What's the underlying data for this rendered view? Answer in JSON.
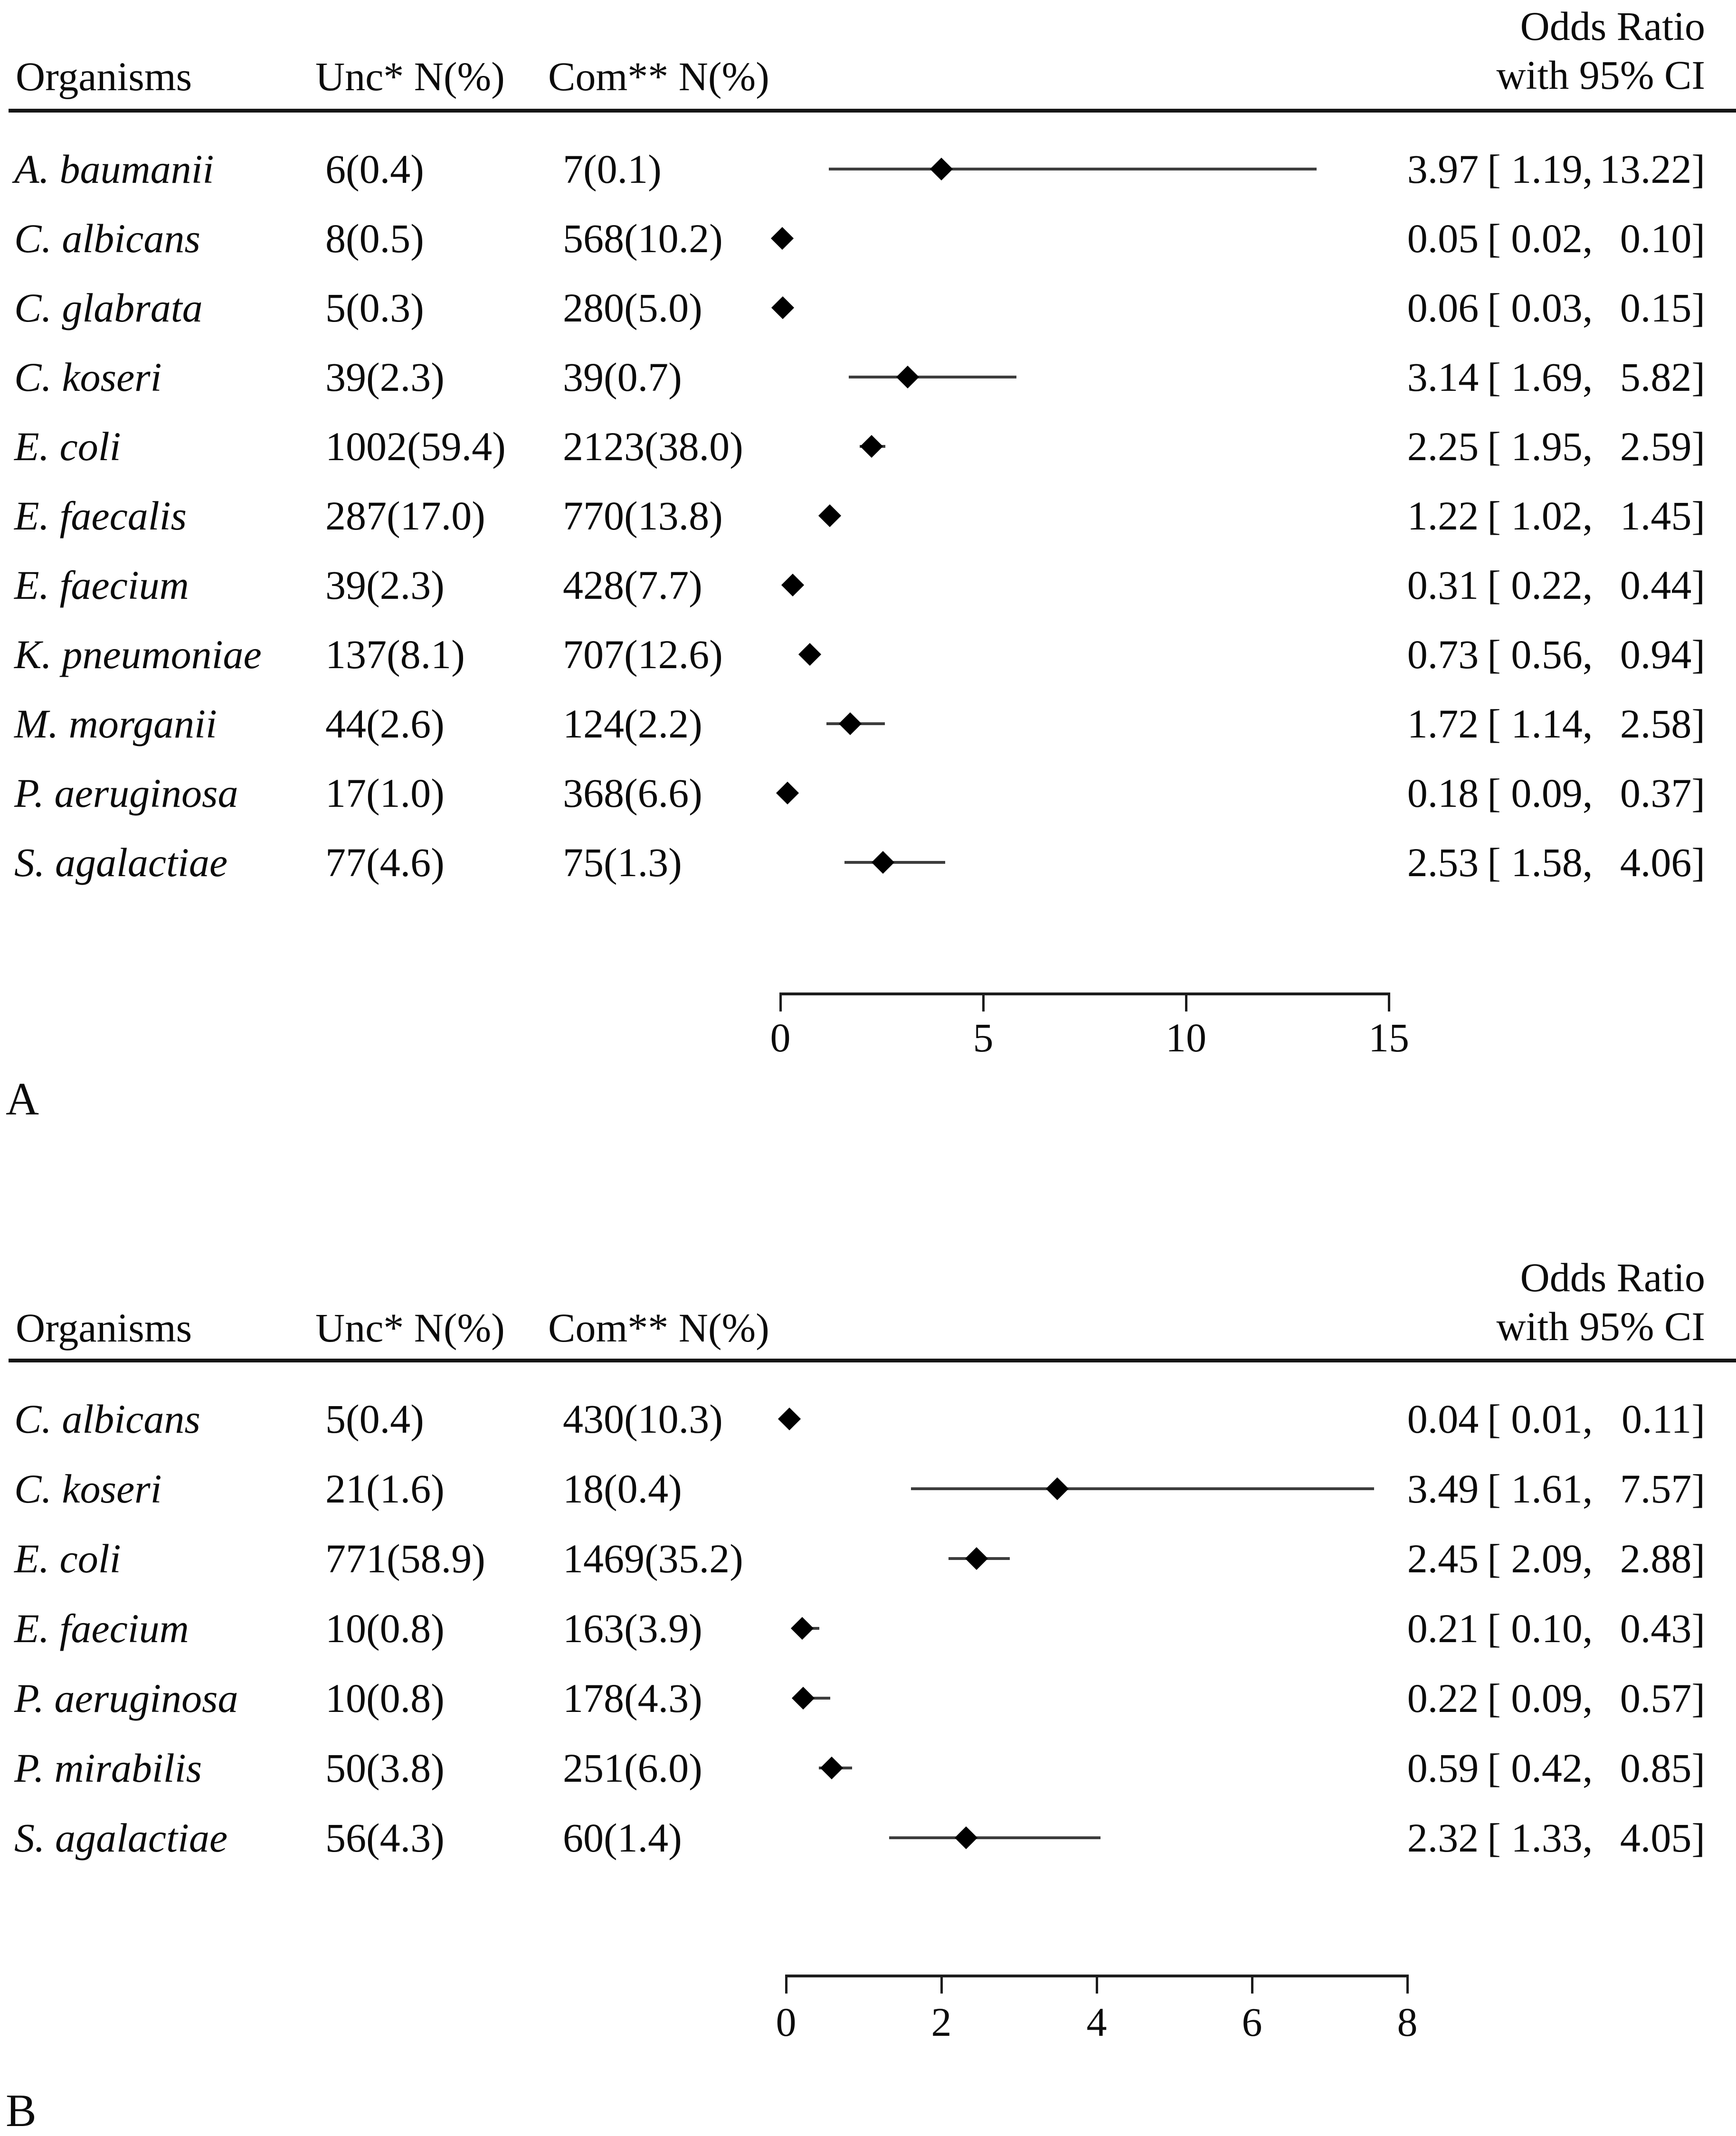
{
  "chart_data": [
    {
      "type": "scatter",
      "panel_letter": "A",
      "header": {
        "organisms": "Organisms",
        "unc": "Unc* N(%)",
        "com": "Com** N(%)",
        "or_line1": "Odds Ratio",
        "or_line2": "with 95% CI"
      },
      "xlim": [
        0,
        15
      ],
      "xticks": [
        "0",
        "5",
        "10",
        "15"
      ],
      "grid": false,
      "marker_color": "#000000",
      "ci_line_color": "#3d3d3d",
      "rows": [
        {
          "organism": "A. baumanii",
          "unc": "6(0.4)",
          "com": "7(0.1)",
          "or": 3.97,
          "ci_low": 1.19,
          "ci_high": 13.22,
          "or_label": "3.97",
          "ci_low_label": "1.19",
          "ci_high_label": "13.22"
        },
        {
          "organism": "C. albicans",
          "unc": "8(0.5)",
          "com": "568(10.2)",
          "or": 0.05,
          "ci_low": 0.02,
          "ci_high": 0.1,
          "or_label": "0.05",
          "ci_low_label": "0.02",
          "ci_high_label": "0.10"
        },
        {
          "organism": "C. glabrata",
          "unc": "5(0.3)",
          "com": "280(5.0)",
          "or": 0.06,
          "ci_low": 0.03,
          "ci_high": 0.15,
          "or_label": "0.06",
          "ci_low_label": "0.03",
          "ci_high_label": "0.15"
        },
        {
          "organism": "C. koseri",
          "unc": "39(2.3)",
          "com": "39(0.7)",
          "or": 3.14,
          "ci_low": 1.69,
          "ci_high": 5.82,
          "or_label": "3.14",
          "ci_low_label": "1.69",
          "ci_high_label": "5.82"
        },
        {
          "organism": "E. coli",
          "unc": "1002(59.4)",
          "com": "2123(38.0)",
          "or": 2.25,
          "ci_low": 1.95,
          "ci_high": 2.59,
          "or_label": "2.25",
          "ci_low_label": "1.95",
          "ci_high_label": "2.59"
        },
        {
          "organism": "E. faecalis",
          "unc": "287(17.0)",
          "com": "770(13.8)",
          "or": 1.22,
          "ci_low": 1.02,
          "ci_high": 1.45,
          "or_label": "1.22",
          "ci_low_label": "1.02",
          "ci_high_label": "1.45"
        },
        {
          "organism": "E. faecium",
          "unc": "39(2.3)",
          "com": "428(7.7)",
          "or": 0.31,
          "ci_low": 0.22,
          "ci_high": 0.44,
          "or_label": "0.31",
          "ci_low_label": "0.22",
          "ci_high_label": "0.44"
        },
        {
          "organism": "K. pneumoniae",
          "unc": "137(8.1)",
          "com": "707(12.6)",
          "or": 0.73,
          "ci_low": 0.56,
          "ci_high": 0.94,
          "or_label": "0.73",
          "ci_low_label": "0.56",
          "ci_high_label": "0.94"
        },
        {
          "organism": "M. morganii",
          "unc": "44(2.6)",
          "com": "124(2.2)",
          "or": 1.72,
          "ci_low": 1.14,
          "ci_high": 2.58,
          "or_label": "1.72",
          "ci_low_label": "1.14",
          "ci_high_label": "2.58"
        },
        {
          "organism": "P. aeruginosa",
          "unc": "17(1.0)",
          "com": "368(6.6)",
          "or": 0.18,
          "ci_low": 0.09,
          "ci_high": 0.37,
          "or_label": "0.18",
          "ci_low_label": "0.09",
          "ci_high_label": "0.37"
        },
        {
          "organism": "S. agalactiae",
          "unc": "77(4.6)",
          "com": "75(1.3)",
          "or": 2.53,
          "ci_low": 1.58,
          "ci_high": 4.06,
          "or_label": "2.53",
          "ci_low_label": "1.58",
          "ci_high_label": "4.06"
        }
      ]
    },
    {
      "type": "scatter",
      "panel_letter": "B",
      "header": {
        "organisms": "Organisms",
        "unc": "Unc* N(%)",
        "com": "Com** N(%)",
        "or_line1": "Odds Ratio",
        "or_line2": "with 95% CI"
      },
      "xlim": [
        0,
        8
      ],
      "xticks": [
        "0",
        "2",
        "4",
        "6",
        "8"
      ],
      "grid": false,
      "marker_color": "#000000",
      "ci_line_color": "#3d3d3d",
      "rows": [
        {
          "organism": "C. albicans",
          "unc": "5(0.4)",
          "com": "430(10.3)",
          "or": 0.04,
          "ci_low": 0.01,
          "ci_high": 0.11,
          "or_label": "0.04",
          "ci_low_label": "0.01",
          "ci_high_label": "0.11"
        },
        {
          "organism": "C. koseri",
          "unc": "21(1.6)",
          "com": "18(0.4)",
          "or": 3.49,
          "ci_low": 1.61,
          "ci_high": 7.57,
          "or_label": "3.49",
          "ci_low_label": "1.61",
          "ci_high_label": "7.57"
        },
        {
          "organism": "E. coli",
          "unc": "771(58.9)",
          "com": "1469(35.2)",
          "or": 2.45,
          "ci_low": 2.09,
          "ci_high": 2.88,
          "or_label": "2.45",
          "ci_low_label": "2.09",
          "ci_high_label": "2.88"
        },
        {
          "organism": "E. faecium",
          "unc": "10(0.8)",
          "com": "163(3.9)",
          "or": 0.21,
          "ci_low": 0.1,
          "ci_high": 0.43,
          "or_label": "0.21",
          "ci_low_label": "0.10",
          "ci_high_label": "0.43"
        },
        {
          "organism": "P. aeruginosa",
          "unc": "10(0.8)",
          "com": "178(4.3)",
          "or": 0.22,
          "ci_low": 0.09,
          "ci_high": 0.57,
          "or_label": "0.22",
          "ci_low_label": "0.09",
          "ci_high_label": "0.57"
        },
        {
          "organism": "P. mirabilis",
          "unc": "50(3.8)",
          "com": "251(6.0)",
          "or": 0.59,
          "ci_low": 0.42,
          "ci_high": 0.85,
          "or_label": "0.59",
          "ci_low_label": "0.42",
          "ci_high_label": "0.85"
        },
        {
          "organism": "S. agalactiae",
          "unc": "56(4.3)",
          "com": "60(1.4)",
          "or": 2.32,
          "ci_low": 1.33,
          "ci_high": 4.05,
          "or_label": "2.32",
          "ci_low_label": "1.33",
          "ci_high_label": "4.05"
        }
      ]
    }
  ]
}
